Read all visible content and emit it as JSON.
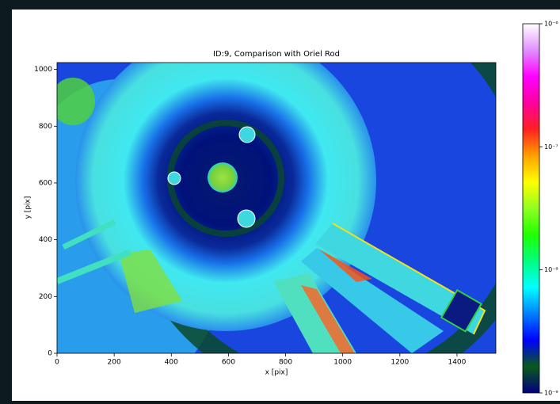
{
  "chart_data": {
    "type": "image",
    "title": "ID:9, Comparison with Oriel Rod",
    "xlabel": "x [pix]",
    "ylabel": "y [pix]",
    "xlim": [
      0,
      1536
    ],
    "ylim": [
      0,
      1024
    ],
    "xticks": [
      0,
      200,
      400,
      600,
      800,
      1000,
      1200,
      1400
    ],
    "yticks": [
      0,
      200,
      400,
      600,
      800,
      1000
    ],
    "colorbar": {
      "log": true,
      "clim": [
        1e-09,
        1e-06
      ],
      "ticks": [
        {
          "value": 1e-09,
          "label": "10⁻⁹"
        },
        {
          "value": 1e-08,
          "label": "10⁻⁸"
        },
        {
          "value": 1e-07,
          "label": "10⁻⁷"
        },
        {
          "value": 1e-06,
          "label": "10⁻⁶"
        }
      ],
      "colormap": [
        "#000080",
        "#0a5a1a",
        "#0000ff",
        "#0080ff",
        "#00ffff",
        "#00ff80",
        "#20ff00",
        "#90ff20",
        "#ffff00",
        "#ffa000",
        "#ff2020",
        "#ff00a0",
        "#ff00ff",
        "#e090ff",
        "#ffffff"
      ]
    }
  }
}
